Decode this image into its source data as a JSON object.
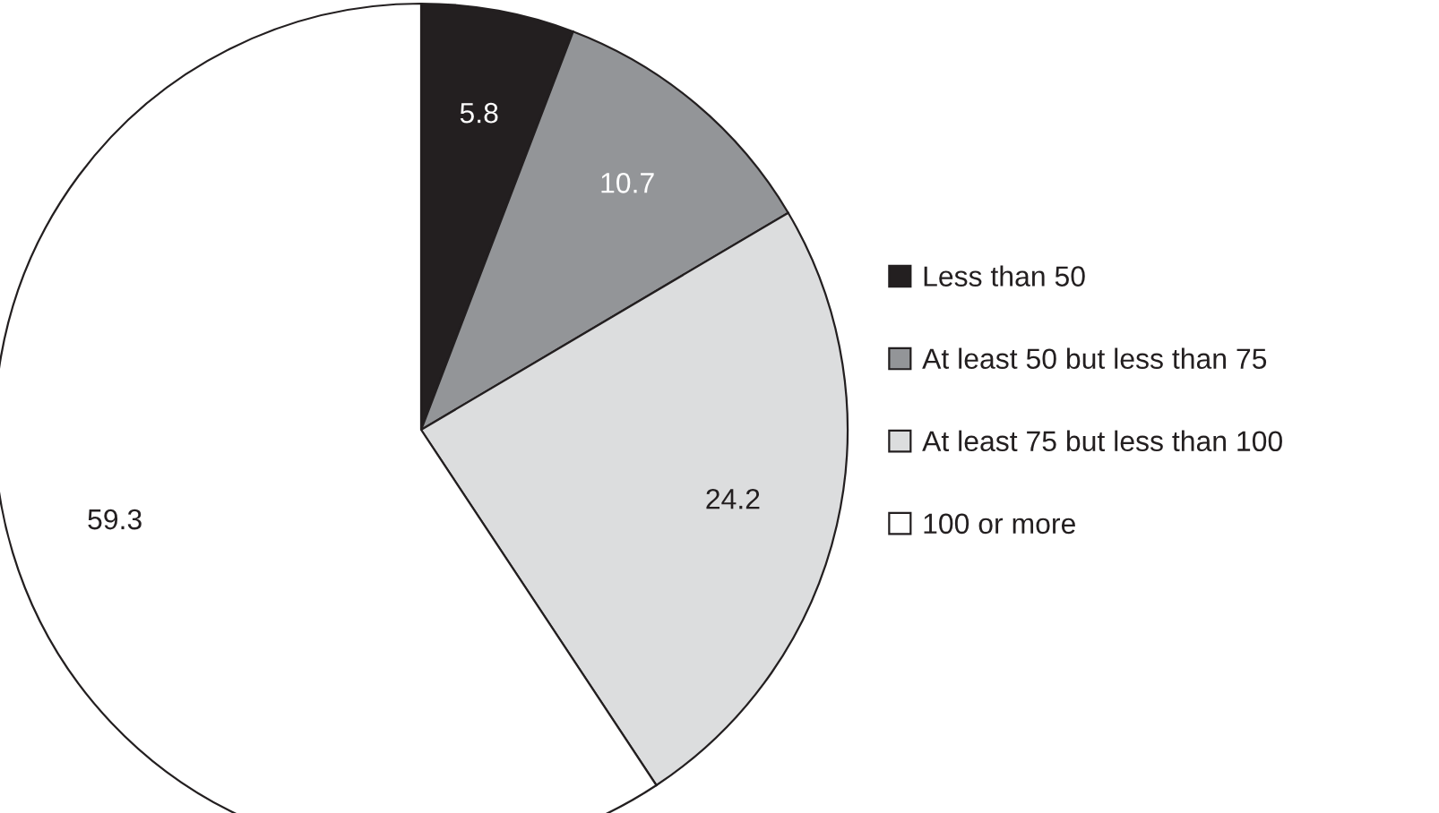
{
  "chart_data": {
    "type": "pie",
    "categories": [
      "Less than 50",
      "At least 50 but less than 75",
      "At least 75 but less than 100",
      "100 or more"
    ],
    "values": [
      5.8,
      10.7,
      24.2,
      59.3
    ],
    "colors": [
      "#231f20",
      "#939598",
      "#dcddde",
      "#ffffff"
    ],
    "data_labels": true,
    "legend": "right"
  }
}
